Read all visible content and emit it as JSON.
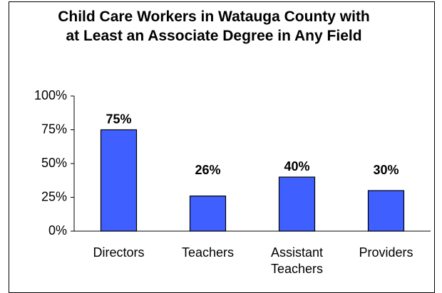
{
  "chart_data": {
    "type": "bar",
    "title": "Child Care Workers in Watauga County with at Least an Associate Degree in Any Field",
    "categories": [
      "Directors",
      "Teachers",
      "Assistant Teachers",
      "Providers"
    ],
    "values": [
      75,
      26,
      40,
      30
    ],
    "value_labels": [
      "75%",
      "26%",
      "40%",
      "30%"
    ],
    "color": "#3f5fff",
    "ylim": [
      0,
      100
    ],
    "yticks": [
      {
        "value": 0,
        "label": "0%"
      },
      {
        "value": 25,
        "label": "25%"
      },
      {
        "value": 50,
        "label": "50%"
      },
      {
        "value": 75,
        "label": "75%"
      },
      {
        "value": 100,
        "label": "100%"
      }
    ],
    "grid": false
  }
}
